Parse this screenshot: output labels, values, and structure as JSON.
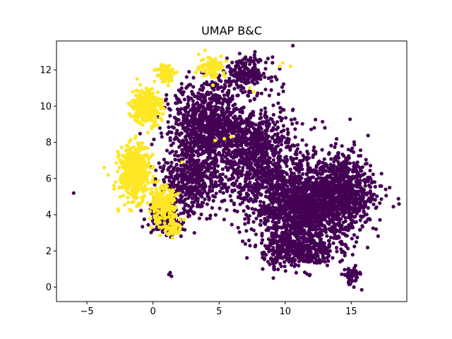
{
  "chart_data": {
    "type": "scatter",
    "title": "UMAP B&C",
    "xlabel": "",
    "ylabel": "",
    "xlim": [
      -7.3,
      19.2
    ],
    "ylim": [
      -0.8,
      13.6
    ],
    "x_ticks": [
      -5,
      0,
      5,
      10,
      15
    ],
    "y_ticks": [
      0,
      2,
      4,
      6,
      8,
      10,
      12
    ],
    "x_tick_labels": [
      "−5",
      "0",
      "5",
      "10",
      "15"
    ],
    "y_tick_labels": [
      "0",
      "2",
      "4",
      "6",
      "8",
      "10",
      "12"
    ],
    "grid": false,
    "legend": "none",
    "series": [
      {
        "color": "#440154",
        "clusters": [
          {
            "center": [
              11.5,
              4.5
            ],
            "spread": [
              3.2,
              1.8
            ],
            "count": 1600
          },
          {
            "center": [
              7.5,
              7.5
            ],
            "spread": [
              2.6,
              2.2
            ],
            "count": 900
          },
          {
            "center": [
              4.0,
              9.2
            ],
            "spread": [
              2.0,
              1.7
            ],
            "count": 700
          },
          {
            "center": [
              2.8,
              6.0
            ],
            "spread": [
              1.8,
              1.9
            ],
            "count": 500
          },
          {
            "center": [
              14.5,
              5.5
            ],
            "spread": [
              1.8,
              1.7
            ],
            "count": 500
          },
          {
            "center": [
              11.0,
              2.0
            ],
            "spread": [
              2.2,
              0.7
            ],
            "count": 350
          },
          {
            "center": [
              0.9,
              3.9
            ],
            "spread": [
              1.0,
              0.8
            ],
            "count": 200
          },
          {
            "center": [
              7.0,
              11.8
            ],
            "spread": [
              1.4,
              0.7
            ],
            "count": 200
          },
          {
            "center": [
              15.0,
              0.6
            ],
            "spread": [
              0.5,
              0.4
            ],
            "count": 60
          }
        ],
        "points": [
          [
            -6.0,
            5.2
          ],
          [
            1.3,
            0.8
          ],
          [
            1.4,
            0.6
          ],
          [
            1.2,
            0.7
          ],
          [
            15.2,
            0.0
          ],
          [
            14.8,
            0.3
          ],
          [
            17.6,
            5.4
          ],
          [
            17.9,
            5.5
          ],
          [
            12.2,
            8.8
          ],
          [
            13.0,
            8.8
          ],
          [
            8.3,
            1.0
          ],
          [
            9.1,
            0.5
          ]
        ]
      },
      {
        "color": "#fde725",
        "clusters": [
          {
            "center": [
              -1.4,
              6.3
            ],
            "spread": [
              0.9,
              1.2
            ],
            "count": 500
          },
          {
            "center": [
              -0.5,
              10.0
            ],
            "spread": [
              0.9,
              0.8
            ],
            "count": 280
          },
          {
            "center": [
              0.7,
              4.5
            ],
            "spread": [
              0.8,
              0.8
            ],
            "count": 220
          },
          {
            "center": [
              1.0,
              11.8
            ],
            "spread": [
              0.6,
              0.4
            ],
            "count": 90
          },
          {
            "center": [
              4.5,
              12.2
            ],
            "spread": [
              0.8,
              0.5
            ],
            "count": 80
          },
          {
            "center": [
              1.6,
              3.3
            ],
            "spread": [
              0.5,
              0.4
            ],
            "count": 60
          }
        ],
        "points": [
          [
            -3.7,
            6.6
          ],
          [
            -3.4,
            6.2
          ],
          [
            -2.6,
            4.2
          ],
          [
            9.6,
            12.2
          ],
          [
            9.8,
            12.4
          ],
          [
            10.4,
            12.2
          ],
          [
            5.4,
            8.2
          ],
          [
            5.9,
            8.3
          ],
          [
            4.7,
            8.1
          ],
          [
            2.2,
            6.9
          ],
          [
            7.3,
            11.0
          ],
          [
            7.6,
            10.8
          ]
        ]
      }
    ]
  }
}
